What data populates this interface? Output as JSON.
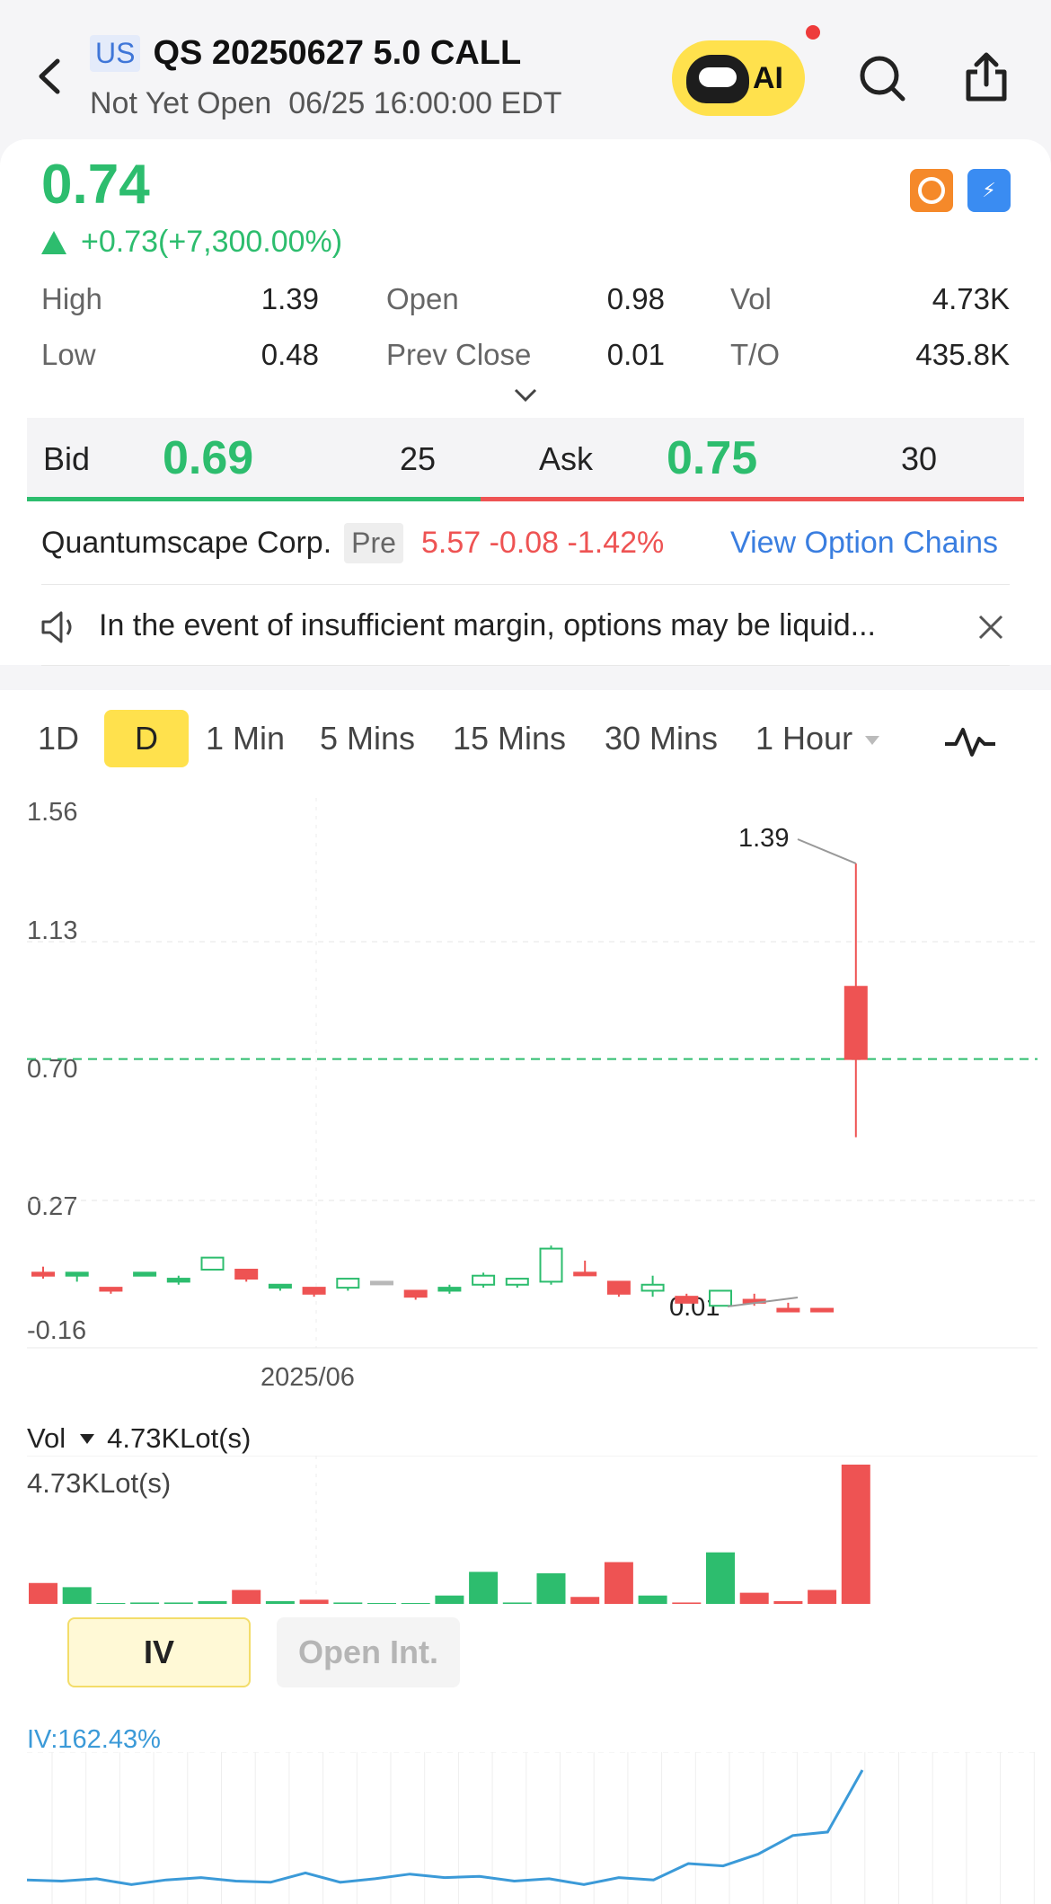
{
  "header": {
    "market_badge": "US",
    "title": "QS 20250627 5.0 CALL",
    "status": "Not Yet Open",
    "datetime": "06/25 16:00:00 EDT",
    "ai_label": "AI"
  },
  "quote": {
    "price": "0.74",
    "change": "+0.73(+7,300.00%)",
    "stats": {
      "high_label": "High",
      "high": "1.39",
      "low_label": "Low",
      "low": "0.48",
      "open_label": "Open",
      "open": "0.98",
      "prev_close_label": "Prev Close",
      "prev_close": "0.01",
      "vol_label": "Vol",
      "vol": "4.73K",
      "turnover_label": "T/O",
      "turnover": "435.8K"
    },
    "bid_label": "Bid",
    "bid_price": "0.69",
    "bid_qty": "25",
    "ask_label": "Ask",
    "ask_price": "0.75",
    "ask_qty": "30"
  },
  "underlying": {
    "name": "Quantumscape Corp.",
    "session": "Pre",
    "quote": "5.57 -0.08 -1.42%",
    "link": "View Option Chains"
  },
  "notice": "In the event of insufficient margin, options may be liquid...",
  "colors": {
    "up": "#2dbd6e",
    "down": "#ee5353",
    "accent": "#ffe14d",
    "link": "#3a7ee0"
  },
  "chart": {
    "tabs": [
      "1D",
      "D",
      "1 Min",
      "5 Mins",
      "15 Mins",
      "30 Mins",
      "1 Hour"
    ],
    "active_tab": "D",
    "y_ticks": [
      "1.56",
      "1.13",
      "0.70",
      "0.27",
      "-0.16"
    ],
    "x_label": "2025/06",
    "high_marker": "1.39",
    "low_marker": "0.01",
    "vol_label": "Vol",
    "vol_value": "4.73KLot(s)",
    "vol_max": "4.73KLot(s)",
    "iv_tab": "IV",
    "oi_tab": "Open Int.",
    "iv_value": "IV:162.43%"
  },
  "chart_data": [
    {
      "type": "candlestick",
      "ylim": [
        -0.16,
        1.56
      ],
      "current_price": 0.74,
      "candles": [
        {
          "o": 0.03,
          "h": 0.05,
          "l": 0.01,
          "c": 0.02,
          "dir": "down"
        },
        {
          "o": 0.02,
          "h": 0.03,
          "l": 0.0,
          "c": 0.03,
          "dir": "up"
        },
        {
          "o": -0.02,
          "h": -0.02,
          "l": -0.04,
          "c": -0.03,
          "dir": "down"
        },
        {
          "o": 0.02,
          "h": 0.03,
          "l": 0.02,
          "c": 0.03,
          "dir": "up"
        },
        {
          "o": 0.0,
          "h": 0.02,
          "l": -0.01,
          "c": 0.01,
          "dir": "up"
        },
        {
          "o": 0.04,
          "h": 0.08,
          "l": 0.04,
          "c": 0.08,
          "dir": "up"
        },
        {
          "o": 0.04,
          "h": 0.04,
          "l": 0.0,
          "c": 0.01,
          "dir": "down"
        },
        {
          "o": -0.01,
          "h": -0.01,
          "l": -0.03,
          "c": -0.02,
          "dir": "up"
        },
        {
          "o": -0.02,
          "h": -0.02,
          "l": -0.05,
          "c": -0.04,
          "dir": "down"
        },
        {
          "o": -0.02,
          "h": 0.01,
          "l": -0.03,
          "c": 0.01,
          "dir": "up"
        },
        {
          "o": 0.0,
          "h": 0.0,
          "l": 0.0,
          "c": 0.0,
          "dir": "flat"
        },
        {
          "o": -0.03,
          "h": -0.03,
          "l": -0.06,
          "c": -0.05,
          "dir": "down"
        },
        {
          "o": -0.03,
          "h": -0.01,
          "l": -0.04,
          "c": -0.02,
          "dir": "up"
        },
        {
          "o": -0.01,
          "h": 0.03,
          "l": -0.02,
          "c": 0.02,
          "dir": "up"
        },
        {
          "o": -0.01,
          "h": 0.01,
          "l": -0.02,
          "c": 0.01,
          "dir": "up"
        },
        {
          "o": 0.0,
          "h": 0.12,
          "l": -0.01,
          "c": 0.11,
          "dir": "up"
        },
        {
          "o": 0.03,
          "h": 0.07,
          "l": 0.02,
          "c": 0.03,
          "dir": "down"
        },
        {
          "o": 0.0,
          "h": 0.0,
          "l": -0.05,
          "c": -0.04,
          "dir": "down"
        },
        {
          "o": -0.01,
          "h": 0.02,
          "l": -0.05,
          "c": -0.03,
          "dir": "up"
        },
        {
          "o": -0.05,
          "h": -0.04,
          "l": -0.07,
          "c": -0.07,
          "dir": "down"
        },
        {
          "o": -0.08,
          "h": -0.03,
          "l": -0.08,
          "c": -0.03,
          "dir": "up"
        },
        {
          "o": -0.06,
          "h": -0.04,
          "l": -0.08,
          "c": -0.07,
          "dir": "down"
        },
        {
          "o": -0.09,
          "h": -0.07,
          "l": -0.1,
          "c": -0.09,
          "dir": "down"
        },
        {
          "o": -0.09,
          "h": -0.09,
          "l": -0.09,
          "c": -0.09,
          "dir": "down"
        },
        {
          "o": 0.98,
          "h": 1.39,
          "l": 0.48,
          "c": 0.74,
          "dir": "down"
        }
      ]
    },
    {
      "type": "bar",
      "title": "Vol",
      "values_relative": [
        0.15,
        0.12,
        0,
        0.01,
        0.01,
        0.02,
        0.1,
        0.02,
        0.03,
        0.01,
        0,
        0,
        0.06,
        0.23,
        0.01,
        0.22,
        0.05,
        0.3,
        0.06,
        0.01,
        0.37,
        0.08,
        0.02,
        0.1,
        1.0
      ],
      "directions": [
        "down",
        "up",
        "up",
        "up",
        "up",
        "up",
        "down",
        "up",
        "down",
        "up",
        "up",
        "up",
        "up",
        "up",
        "up",
        "up",
        "down",
        "down",
        "up",
        "down",
        "up",
        "down",
        "down",
        "down",
        "down"
      ],
      "max_label": "4.73KLot(s)"
    },
    {
      "type": "line",
      "title": "IV:162.43%",
      "values_relative": [
        0.06,
        0.05,
        0.07,
        0.02,
        0.06,
        0.08,
        0.05,
        0.04,
        0.12,
        0.04,
        0.07,
        0.11,
        0.08,
        0.09,
        0.05,
        0.07,
        0.02,
        0.08,
        0.06,
        0.2,
        0.18,
        0.28,
        0.44,
        0.47,
        1.0
      ]
    }
  ]
}
